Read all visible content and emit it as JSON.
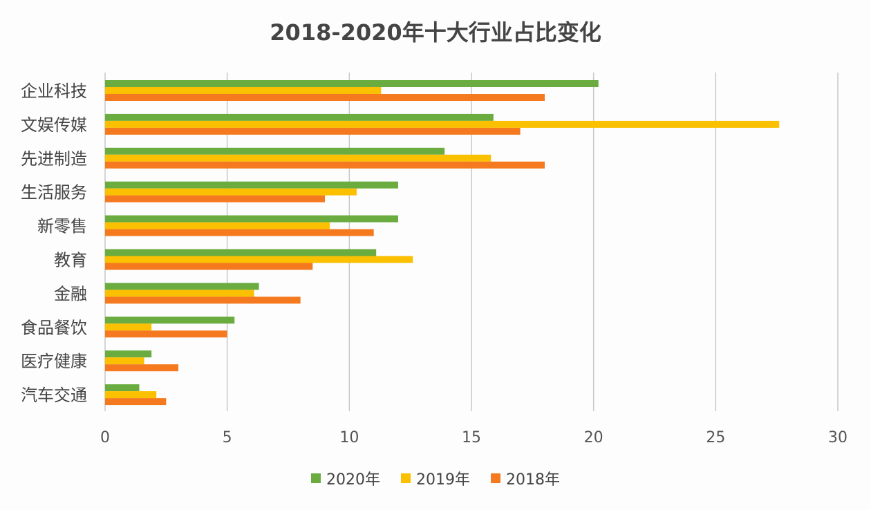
{
  "chart_data": {
    "type": "bar",
    "orientation": "horizontal",
    "title": "2018-2020年十大行业占比变化",
    "categories": [
      "企业科技",
      "文娱传媒",
      "先进制造",
      "生活服务",
      "新零售",
      "教育",
      "金融",
      "食品餐饮",
      "医疗健康",
      "汽车交通"
    ],
    "series": [
      {
        "name": "2020年",
        "color": "#6aac3f",
        "values": [
          20.2,
          15.9,
          13.9,
          12.0,
          12.0,
          11.1,
          6.3,
          5.3,
          1.9,
          1.4
        ]
      },
      {
        "name": "2019年",
        "color": "#fbc000",
        "values": [
          11.3,
          27.6,
          15.8,
          10.3,
          9.2,
          12.6,
          6.1,
          1.9,
          1.6,
          2.1
        ]
      },
      {
        "name": "2018年",
        "color": "#f57a1f",
        "values": [
          18.0,
          17.0,
          18.0,
          9.0,
          11.0,
          8.5,
          8.0,
          5.0,
          3.0,
          2.5
        ]
      }
    ],
    "xlim": [
      0,
      30
    ],
    "xticks": [
      0,
      5,
      10,
      15,
      20,
      25,
      30
    ],
    "grid": true,
    "legend": "bottom"
  }
}
